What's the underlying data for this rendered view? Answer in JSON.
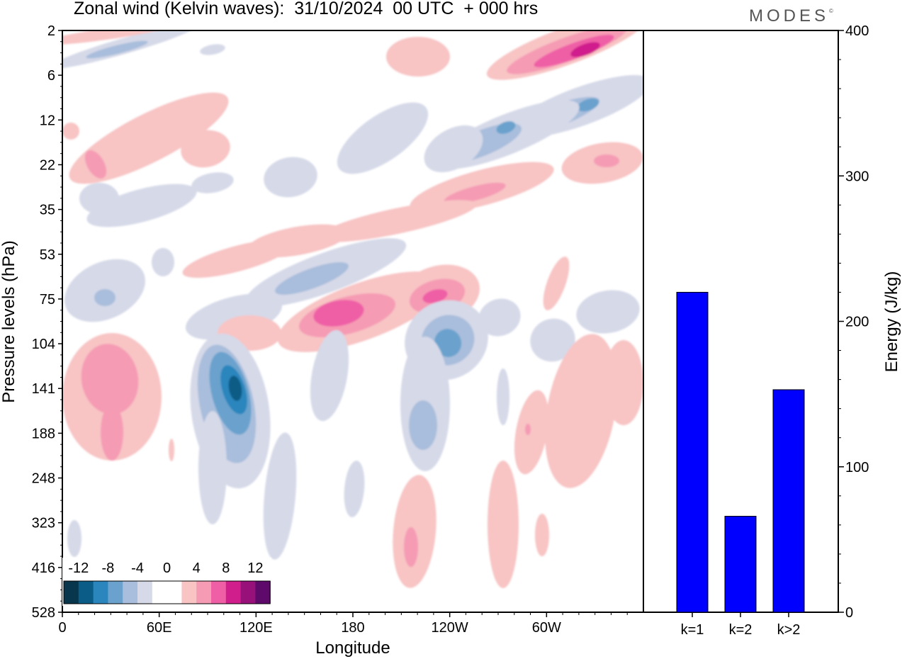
{
  "header": {
    "title": "Zonal wind (Kelvin waves):  31/10/2024  00 UTC  + 000 hrs",
    "logo": "MODES",
    "logo_mark": "©"
  },
  "chart_data": [
    {
      "type": "heatmap",
      "title": "Zonal wind (Kelvin waves):  31/10/2024  00 UTC  + 000 hrs",
      "xlabel": "Longitude",
      "ylabel": "Pressure levels (hPa)",
      "x_ticks": [
        "0",
        "60E",
        "120E",
        "180",
        "120W",
        "60W"
      ],
      "y_ticks": [
        "2",
        "6",
        "12",
        "22",
        "35",
        "53",
        "75",
        "104",
        "141",
        "188",
        "248",
        "323",
        "416",
        "528"
      ],
      "colorbar": {
        "ticks": [
          "-12",
          "-8",
          "-4",
          "0",
          "4",
          "8",
          "12"
        ],
        "colors": [
          "#08364d",
          "#0b5c86",
          "#2b86bd",
          "#6aa2cd",
          "#a9bedc",
          "#d6d9e8",
          "#ffffff",
          "#ffffff",
          "#f8c4c4",
          "#f59bb4",
          "#ef5fa6",
          "#d01f8c",
          "#98107a",
          "#5e0a6b"
        ]
      },
      "features": [
        {
          "sign": "positive",
          "level": 4,
          "lon": 290,
          "p": 4
        },
        {
          "sign": "positive",
          "level": 3,
          "lon": 255,
          "p": 5
        },
        {
          "sign": "negative",
          "level": 3,
          "lon": 250,
          "p": 12
        },
        {
          "sign": "negative",
          "level": 2,
          "lon": 270,
          "p": 10
        },
        {
          "sign": "positive",
          "level": 2,
          "lon": 195,
          "p": 75
        },
        {
          "sign": "positive",
          "level": 2,
          "lon": 233,
          "p": 71
        },
        {
          "sign": "negative",
          "level": 3,
          "lon": 237,
          "p": 104
        },
        {
          "sign": "negative",
          "level": 4,
          "lon": 110,
          "p": 141
        },
        {
          "sign": "positive",
          "level": 2,
          "lon": 265,
          "p": 28
        },
        {
          "sign": "positive",
          "level": 2,
          "lon": 50,
          "p": 136
        }
      ]
    },
    {
      "type": "bar",
      "categories": [
        "k=1",
        "k=2",
        "k>2"
      ],
      "values": [
        220,
        66,
        153
      ],
      "ylabel": "Energy (J/kg)",
      "y_ticks": [
        "0",
        "100",
        "200",
        "300",
        "400"
      ],
      "ylim": [
        0,
        400
      ],
      "bar_color": "#0000ff"
    }
  ]
}
